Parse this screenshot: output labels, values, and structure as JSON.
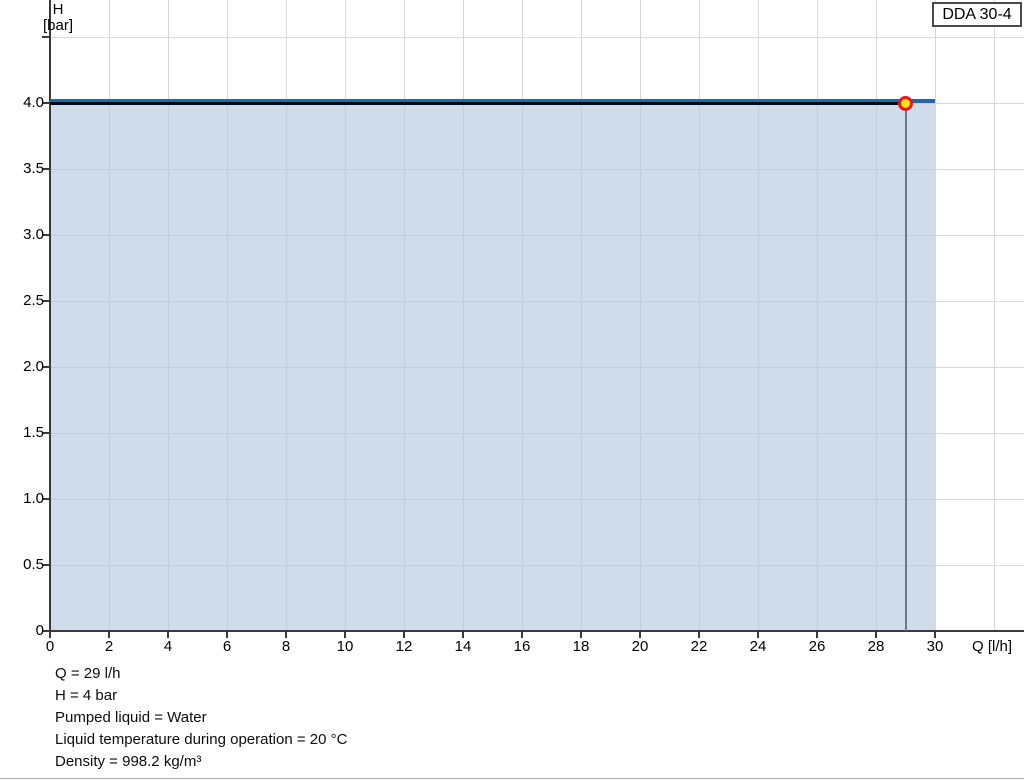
{
  "model_label": "DDA 30-4",
  "chart_data": {
    "type": "line",
    "title": "DDA 30-4",
    "xlabel": "Q [l/h]",
    "ylabel_line1": "H",
    "ylabel_line2": "[bar]",
    "xlim": [
      0,
      33
    ],
    "ylim": [
      0,
      4.78
    ],
    "grid": true,
    "x_axis": {
      "ticks": [
        {
          "v": 0,
          "label": "0"
        },
        {
          "v": 2,
          "label": "2"
        },
        {
          "v": 4,
          "label": "4"
        },
        {
          "v": 6,
          "label": "6"
        },
        {
          "v": 8,
          "label": "8"
        },
        {
          "v": 10,
          "label": "10"
        },
        {
          "v": 12,
          "label": "12"
        },
        {
          "v": 14,
          "label": "14"
        },
        {
          "v": 16,
          "label": "16"
        },
        {
          "v": 18,
          "label": "18"
        },
        {
          "v": 20,
          "label": "20"
        },
        {
          "v": 22,
          "label": "22"
        },
        {
          "v": 24,
          "label": "24"
        },
        {
          "v": 26,
          "label": "26"
        },
        {
          "v": 28,
          "label": "28"
        },
        {
          "v": 30,
          "label": "30"
        }
      ],
      "extra_gridlines": [
        32
      ]
    },
    "y_axis": {
      "ticks": [
        {
          "v": 4.5,
          "label": ""
        },
        {
          "v": 4.0,
          "label": "4.0"
        },
        {
          "v": 3.5,
          "label": "3.5"
        },
        {
          "v": 3.0,
          "label": "3.0"
        },
        {
          "v": 2.5,
          "label": "2.5"
        },
        {
          "v": 2.0,
          "label": "2.0"
        },
        {
          "v": 1.5,
          "label": "1.5"
        },
        {
          "v": 1.0,
          "label": "1.0"
        },
        {
          "v": 0.5,
          "label": "0.5"
        },
        {
          "v": 0,
          "label": "0"
        }
      ]
    },
    "series": [
      {
        "name": "pump-curve",
        "role": "curve",
        "x": [
          0,
          30
        ],
        "y": [
          4,
          4
        ],
        "color": "#2766a4"
      },
      {
        "name": "operating-range",
        "role": "range",
        "x": [
          0,
          29
        ],
        "y": [
          4,
          4
        ],
        "color": "#06090e"
      }
    ],
    "area_fill": {
      "x": [
        0,
        30
      ],
      "y_top": 4,
      "y_bottom": 0,
      "color": "rgba(176,197,219,0.6)"
    },
    "operating_point": {
      "q": 29,
      "h": 4,
      "fill_color": "#ffe60a",
      "ring_color": "#e7191c",
      "drop_line_color": "#6d7985"
    },
    "colors": {
      "gridline": "#d8d8d8",
      "axis": "#3a3a3a"
    }
  },
  "info_lines": [
    "Q = 29 l/h",
    "H = 4 bar",
    "Pumped liquid = Water",
    "Liquid temperature during operation = 20 °C",
    "Density = 998.2 kg/m³"
  ]
}
